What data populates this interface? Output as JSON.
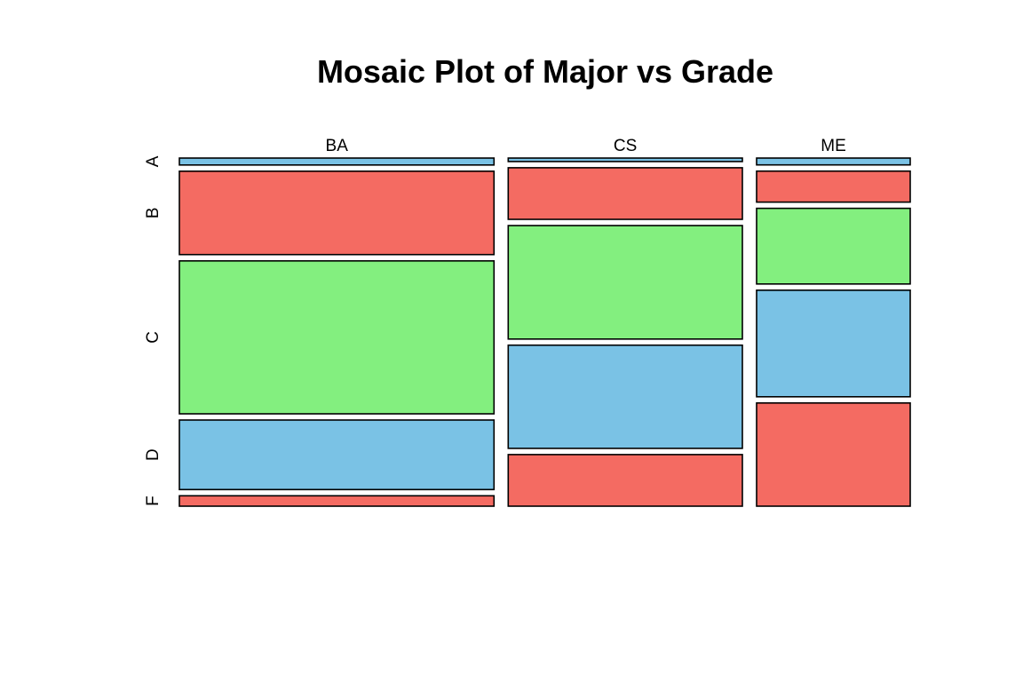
{
  "chart_data": {
    "type": "mosaic",
    "title": "Mosaic Plot of Major vs Grade",
    "xlabel": "",
    "ylabel": "",
    "x_variable_levels": [
      "BA",
      "CS",
      "ME"
    ],
    "y_variable_levels": [
      "A",
      "B",
      "C",
      "D",
      "F"
    ],
    "column_proportions": [
      0.43,
      0.32,
      0.21
    ],
    "cells": [
      {
        "major": "BA",
        "grades": [
          {
            "grade": "A",
            "proportion": 0.02,
            "color": "#7AC2E5"
          },
          {
            "grade": "B",
            "proportion": 0.24,
            "color": "#F46B62"
          },
          {
            "grade": "C",
            "proportion": 0.44,
            "color": "#83EF7F"
          },
          {
            "grade": "D",
            "proportion": 0.2,
            "color": "#7AC2E5"
          },
          {
            "grade": "F",
            "proportion": 0.03,
            "color": "#F46B62"
          }
        ]
      },
      {
        "major": "CS",
        "grades": [
          {
            "grade": "A",
            "proportion": 0.01,
            "color": "#7AC2E5"
          },
          {
            "grade": "B",
            "proportion": 0.15,
            "color": "#F46B62"
          },
          {
            "grade": "C",
            "proportion": 0.33,
            "color": "#83EF7F"
          },
          {
            "grade": "D",
            "proportion": 0.3,
            "color": "#7AC2E5"
          },
          {
            "grade": "F",
            "proportion": 0.15,
            "color": "#F46B62"
          }
        ]
      },
      {
        "major": "ME",
        "grades": [
          {
            "grade": "A",
            "proportion": 0.02,
            "color": "#7AC2E5"
          },
          {
            "grade": "B",
            "proportion": 0.09,
            "color": "#F46B62"
          },
          {
            "grade": "C",
            "proportion": 0.22,
            "color": "#83EF7F"
          },
          {
            "grade": "D",
            "proportion": 0.31,
            "color": "#7AC2E5"
          },
          {
            "grade": "F",
            "proportion": 0.3,
            "color": "#F46B62"
          }
        ]
      }
    ]
  }
}
